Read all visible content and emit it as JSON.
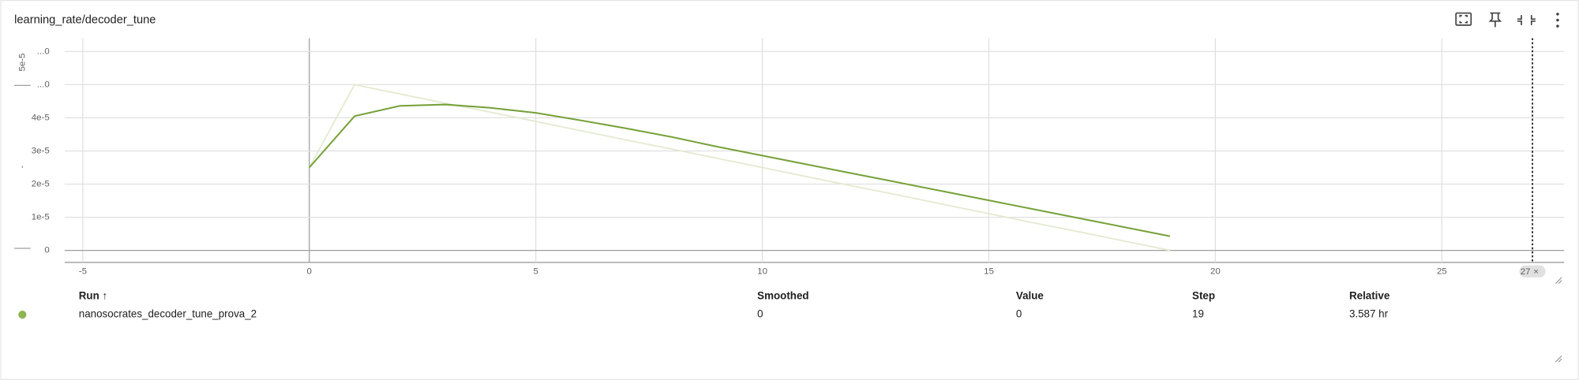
{
  "header": {
    "title": "learning_rate/decoder_tune"
  },
  "chart_data": {
    "type": "line",
    "x": [
      0,
      1,
      2,
      3,
      4,
      5,
      6,
      7,
      8,
      9,
      10,
      11,
      12,
      13,
      14,
      15,
      16,
      17,
      18,
      19
    ],
    "series": [
      {
        "color": "#e3ead0",
        "values": [
          2.5e-05,
          5e-05,
          4.72e-05,
          4.44e-05,
          4.17e-05,
          3.89e-05,
          3.61e-05,
          3.33e-05,
          3.06e-05,
          2.78e-05,
          2.5e-05,
          2.22e-05,
          1.94e-05,
          1.67e-05,
          1.39e-05,
          1.11e-05,
          8.3e-06,
          5.6e-06,
          2.8e-06,
          0
        ]
      },
      {
        "color": "#76a13a",
        "values": [
          2.5e-05,
          4.05e-05,
          4.36e-05,
          4.4e-05,
          4.3e-05,
          4.15e-05,
          3.92e-05,
          3.68e-05,
          3.42e-05,
          3.13e-05,
          2.86e-05,
          2.59e-05,
          2.32e-05,
          2.05e-05,
          1.78e-05,
          1.51e-05,
          1.24e-05,
          9.7e-06,
          7e-06,
          4.3e-06
        ]
      }
    ],
    "xlim": [
      -5.4,
      27.7
    ],
    "ylim": [
      -3.6e-06,
      6.4e-05
    ],
    "xticks": [
      -5,
      0,
      5,
      10,
      15,
      20,
      25
    ],
    "yticks": [
      0,
      {
        "value": 1e-05,
        "label": "1e-5"
      },
      {
        "value": 2e-05,
        "label": "2e-5"
      },
      {
        "value": 3e-05,
        "label": "3e-5"
      },
      {
        "value": 4e-05,
        "label": "4e-5"
      },
      {
        "value": 5e-05,
        "label": "...0"
      },
      {
        "value": 6e-05,
        "label": "...0"
      }
    ],
    "y_overflow_label": "5e-5",
    "grid": true,
    "marker": {
      "value": 27,
      "label": "27",
      "close": "×"
    }
  },
  "table": {
    "headers": [
      "Run ↑",
      "Smoothed",
      "Value",
      "Step",
      "Relative"
    ],
    "dot_color": "#8db552",
    "rows": [
      [
        "nanosocrates_decoder_tune_prova_2",
        "0",
        "0",
        "19",
        "3.587 hr"
      ]
    ]
  }
}
